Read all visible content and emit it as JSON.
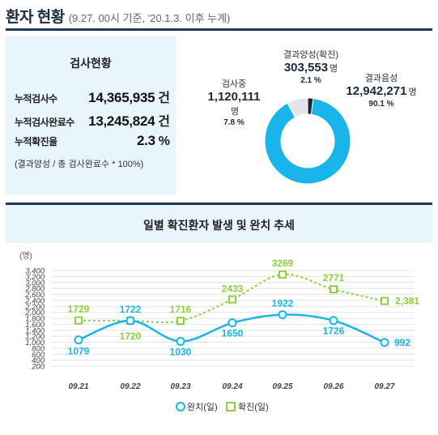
{
  "header": {
    "title": "환자 현황",
    "subtitle": "(9.27. 00시 기준, '20.1.3. 이후 누계)"
  },
  "test_status": {
    "title": "검사현황",
    "rows": [
      {
        "label": "누적검사수",
        "value": "14,365,935",
        "unit": "건"
      },
      {
        "label": "누적검사완료수",
        "value": "13,245,824",
        "unit": "건"
      },
      {
        "label": "누적확진율",
        "value": "2.3",
        "unit": "%"
      }
    ],
    "note": "(결과양성 / 총 검사완료수 * 100%)"
  },
  "donut": {
    "positive": {
      "name": "결과양성(확진)",
      "value": "303,553",
      "unit": "명",
      "pct": "2.1 %",
      "fraction": 0.021,
      "color": "#1b2a3c"
    },
    "testing": {
      "name": "검사중",
      "value": "1,120,111",
      "unit": "명",
      "pct": "7.8 %",
      "fraction": 0.078,
      "color": "#e2e6ea"
    },
    "negative": {
      "name": "결과음성",
      "value": "12,942,271",
      "unit": "명",
      "pct": "90.1 %",
      "fraction": 0.901,
      "color": "#19b4ea"
    }
  },
  "chart_data": {
    "type": "line",
    "title": "일별 확진환자 발생 및 완치 추세",
    "ylabel": "(명)",
    "ylim": [
      200,
      3400
    ],
    "yticks": [
      "3,400",
      "3,200",
      "3,000",
      "2,800",
      "2,600",
      "2,400",
      "2,200",
      "2,000",
      "1,800",
      "1,600",
      "1,400",
      "1,200",
      "1,000",
      "800",
      "600",
      "400",
      "200"
    ],
    "categories": [
      "09.21",
      "09.22",
      "09.23",
      "09.24",
      "09.25",
      "09.26",
      "09.27"
    ],
    "series": [
      {
        "name": "완치(일)",
        "values": [
          1079,
          1722,
          1030,
          1650,
          1922,
          1726,
          992
        ],
        "labels": [
          "1079",
          "1722",
          "1030",
          "1650",
          "1922",
          "1726",
          "992"
        ],
        "color": "#19b4ea"
      },
      {
        "name": "확진(일)",
        "values": [
          1729,
          1720,
          1716,
          2433,
          3269,
          2771,
          2381
        ],
        "labels": [
          "1729",
          "1720",
          "1716",
          "2433",
          "3269",
          "2771",
          "2,381"
        ],
        "color": "#8dd03a"
      }
    ],
    "legend": "bottom"
  }
}
